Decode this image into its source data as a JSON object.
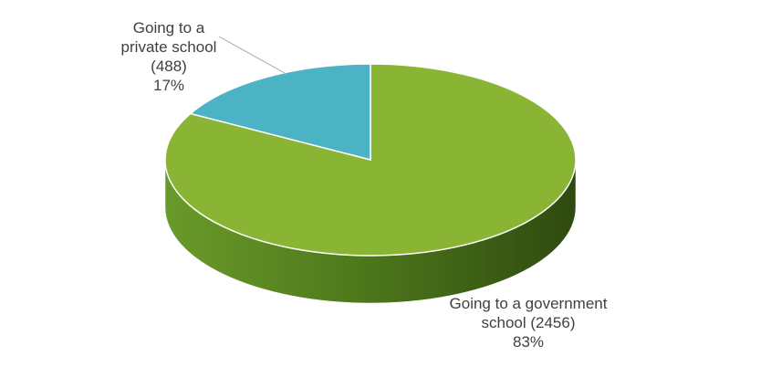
{
  "chart_data": {
    "type": "pie",
    "3d": true,
    "categories": [
      "Going to a government school (2456)",
      "Going to a private school (488)"
    ],
    "values": [
      83,
      17
    ],
    "value_labels": [
      "83%",
      "17%"
    ],
    "colors": [
      "#8ab534",
      "#4bb3c4"
    ]
  }
}
